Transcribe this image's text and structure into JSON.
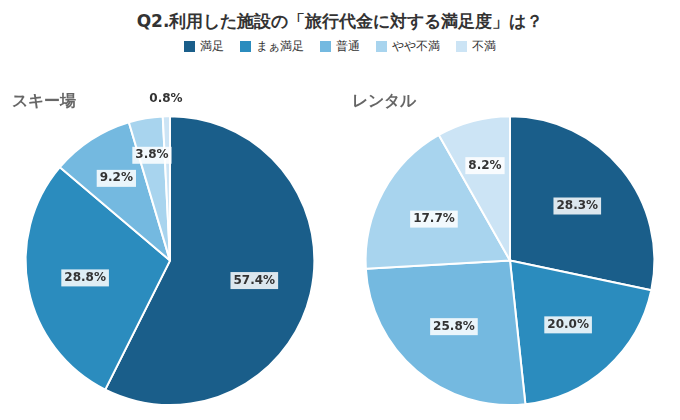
{
  "title": "Q2.利用した施設の「旅行代金に対する満足度」は？",
  "legend": "top",
  "chart_data": [
    {
      "type": "pie",
      "title": "スキー場",
      "categories": [
        "満足",
        "まぁ満足",
        "普通",
        "やや不満",
        "不満"
      ],
      "values": [
        57.4,
        28.8,
        9.2,
        3.8,
        0.8
      ],
      "value_labels": [
        "57.4%",
        "28.8%",
        "9.2%",
        "3.8%",
        "0.8%"
      ],
      "colors": [
        "#1a5e8a",
        "#2b8cbe",
        "#74b9e0",
        "#a8d4ee",
        "#cce4f5"
      ],
      "data_labels": true
    },
    {
      "type": "pie",
      "title": "レンタル",
      "categories": [
        "満足",
        "まぁ満足",
        "普通",
        "やや不満",
        "不満"
      ],
      "values": [
        28.3,
        20.0,
        25.8,
        17.7,
        8.2
      ],
      "value_labels": [
        "28.3%",
        "20.0%",
        "25.8%",
        "17.7%",
        "8.2%"
      ],
      "colors": [
        "#1a5e8a",
        "#2b8cbe",
        "#74b9e0",
        "#a8d4ee",
        "#cce4f5"
      ],
      "data_labels": true
    }
  ]
}
